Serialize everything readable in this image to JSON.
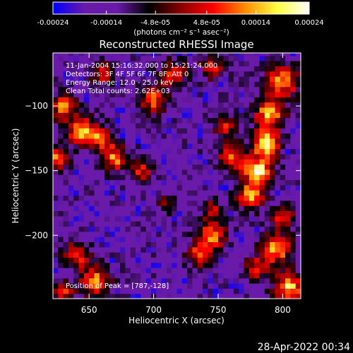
{
  "chart_data": {
    "type": "heatmap",
    "title": "Reconstructed RHESSI Image",
    "xlabel": "Heliocentric X (arcsec)",
    "ylabel": "Heliocentric Y (arcsec)",
    "xlim": [
      622,
      814
    ],
    "ylim": [
      -249,
      -59
    ],
    "x_ticks": [
      650,
      700,
      750,
      800
    ],
    "y_ticks": [
      -200,
      -150,
      -100
    ],
    "colorbar": {
      "range": [
        -0.00024,
        0.00024
      ],
      "tick_values": [
        -0.00024,
        -0.00014,
        -4.8e-05,
        4.8e-05,
        0.00014,
        0.00024
      ],
      "tick_labels": [
        "-0.00024",
        "-0.00014",
        "-4.8e-05",
        "4.8e-05",
        "0.00014",
        "0.00024"
      ],
      "unit_label": "(photons cm⁻² s⁻¹ asec⁻²)",
      "colormap": [
        "#0000ff",
        "#6a1aa8",
        "#6a1aa8",
        "#000000",
        "#8b0000",
        "#ff0000",
        "#ff8c00",
        "#ffff40",
        "#ffffff"
      ]
    },
    "annotations": {
      "time_range": "11-Jan-2004 15:16:32.000 to 15:21:24.000",
      "detectors": "Detectors: 3F 4F 5F 6F 7F 8F, Att 0",
      "energy": "Energy Range: 12.0 - 25.0 keV",
      "clean": "Clean     Total counts: 2.62E+03",
      "peak": "Position of Peak = [787,-128]"
    },
    "peak": [
      787,
      -128
    ],
    "blobs": [
      {
        "x": 787,
        "y": -128,
        "v": 1.0,
        "r": 7
      },
      {
        "x": 781,
        "y": -150,
        "v": 0.95,
        "r": 8
      },
      {
        "x": 790,
        "y": -105,
        "v": 0.8,
        "r": 8
      },
      {
        "x": 775,
        "y": -170,
        "v": 0.8,
        "r": 7
      },
      {
        "x": 800,
        "y": -80,
        "v": 0.75,
        "r": 9
      },
      {
        "x": 760,
        "y": -140,
        "v": 0.7,
        "r": 7
      },
      {
        "x": 755,
        "y": -115,
        "v": 0.55,
        "r": 6
      },
      {
        "x": 745,
        "y": -200,
        "v": 0.7,
        "r": 8
      },
      {
        "x": 735,
        "y": -215,
        "v": 0.6,
        "r": 6
      },
      {
        "x": 795,
        "y": -210,
        "v": 0.8,
        "r": 8
      },
      {
        "x": 805,
        "y": -240,
        "v": 0.85,
        "r": 8
      },
      {
        "x": 800,
        "y": -185,
        "v": 0.6,
        "r": 6
      },
      {
        "x": 780,
        "y": -225,
        "v": 0.55,
        "r": 6
      },
      {
        "x": 630,
        "y": -100,
        "v": 0.7,
        "r": 7
      },
      {
        "x": 645,
        "y": -120,
        "v": 0.8,
        "r": 8
      },
      {
        "x": 625,
        "y": -140,
        "v": 0.65,
        "r": 6
      },
      {
        "x": 670,
        "y": -140,
        "v": 0.7,
        "r": 7
      },
      {
        "x": 660,
        "y": -125,
        "v": 0.6,
        "r": 6
      },
      {
        "x": 700,
        "y": -95,
        "v": 0.65,
        "r": 7
      },
      {
        "x": 690,
        "y": -150,
        "v": 0.55,
        "r": 6
      },
      {
        "x": 715,
        "y": -75,
        "v": 0.6,
        "r": 7
      },
      {
        "x": 745,
        "y": -70,
        "v": 0.55,
        "r": 6
      },
      {
        "x": 660,
        "y": -75,
        "v": 0.5,
        "r": 6
      },
      {
        "x": 640,
        "y": -215,
        "v": 0.6,
        "r": 7
      },
      {
        "x": 655,
        "y": -235,
        "v": 0.75,
        "r": 8
      },
      {
        "x": 630,
        "y": -245,
        "v": 0.55,
        "r": 6
      },
      {
        "x": 745,
        "y": -180,
        "v": 0.45,
        "r": 5
      },
      {
        "x": 710,
        "y": -175,
        "v": 0.3,
        "r": 5
      }
    ]
  },
  "footer": {
    "timestamp": "28-Apr-2022 00:34"
  }
}
